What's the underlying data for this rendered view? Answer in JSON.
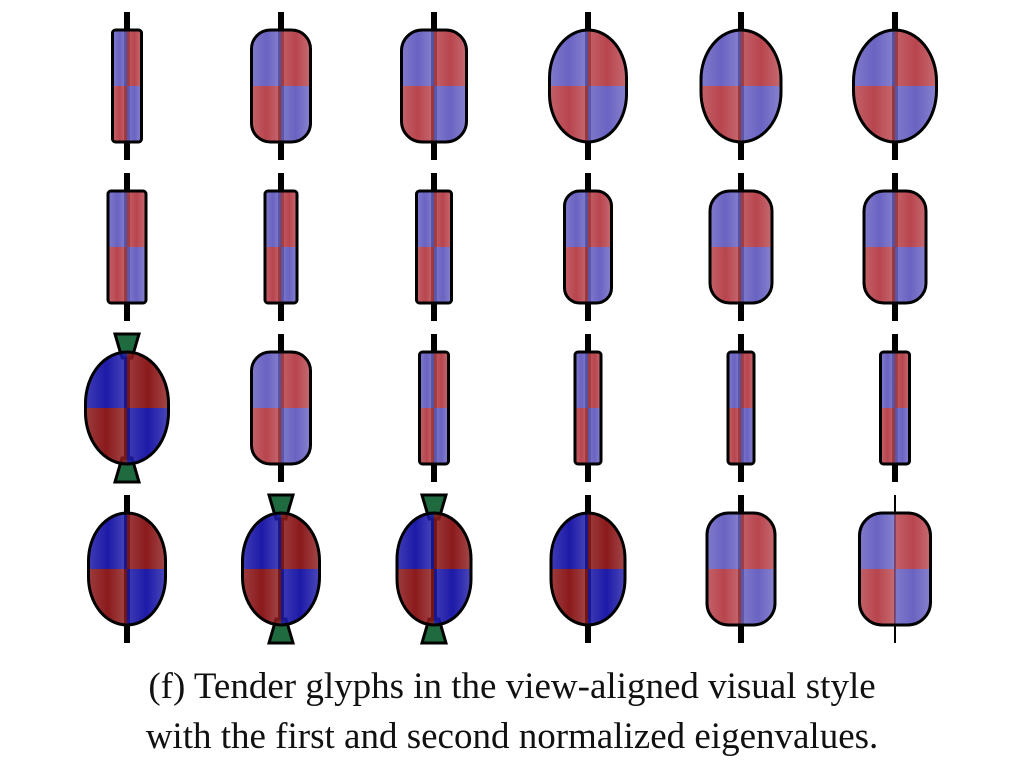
{
  "figure": {
    "colors": {
      "red": "#b8454e",
      "blue": "#6a63c2",
      "dark_red": "#8b1a1c",
      "dark_blue": "#1d1aa8",
      "green": "#1f6a3f",
      "outline": "#000000"
    },
    "glyphs": [
      [
        {
          "shape": "bar",
          "fill": 0.05,
          "tone": "light",
          "cap": "black"
        },
        {
          "shape": "capsule",
          "fill": 0.55,
          "tone": "light",
          "cap": "black"
        },
        {
          "shape": "capsule",
          "fill": 0.65,
          "tone": "light",
          "cap": "black"
        },
        {
          "shape": "ellipsoid",
          "fill": 0.85,
          "tone": "light",
          "cap": "black"
        },
        {
          "shape": "ellipsoid",
          "fill": 0.9,
          "tone": "light",
          "cap": "black"
        },
        {
          "shape": "ellipsoid",
          "fill": 0.95,
          "tone": "light",
          "cap": "black"
        }
      ],
      [
        {
          "shape": "bar",
          "fill": 0.2,
          "tone": "light",
          "cap": "black"
        },
        {
          "shape": "bar",
          "fill": 0.1,
          "tone": "light",
          "cap": "black"
        },
        {
          "shape": "bar",
          "fill": 0.15,
          "tone": "light",
          "cap": "black"
        },
        {
          "shape": "capsule",
          "fill": 0.35,
          "tone": "light",
          "cap": "black"
        },
        {
          "shape": "capsule",
          "fill": 0.6,
          "tone": "light",
          "cap": "black"
        },
        {
          "shape": "capsule",
          "fill": 0.6,
          "tone": "light",
          "cap": "black"
        }
      ],
      [
        {
          "shape": "ellipsoid",
          "fill": 0.95,
          "tone": "dark",
          "cap": "green"
        },
        {
          "shape": "capsule",
          "fill": 0.55,
          "tone": "light",
          "cap": "black"
        },
        {
          "shape": "bar",
          "fill": 0.05,
          "tone": "light",
          "cap": "black"
        },
        {
          "shape": "bar",
          "fill": 0.0,
          "tone": "light",
          "cap": "black"
        },
        {
          "shape": "bar",
          "fill": 0.0,
          "tone": "light",
          "cap": "black"
        },
        {
          "shape": "bar",
          "fill": 0.05,
          "tone": "light",
          "cap": "black"
        }
      ],
      [
        {
          "shape": "ellipsoid",
          "fill": 0.85,
          "tone": "dark",
          "cap": "black"
        },
        {
          "shape": "ellipsoid",
          "fill": 0.85,
          "tone": "dark",
          "cap": "green"
        },
        {
          "shape": "ellipsoid",
          "fill": 0.8,
          "tone": "dark",
          "cap": "green"
        },
        {
          "shape": "ellipsoid",
          "fill": 0.8,
          "tone": "dark",
          "cap": "black"
        },
        {
          "shape": "capsule",
          "fill": 0.7,
          "tone": "light",
          "cap": "black"
        },
        {
          "shape": "capsule",
          "fill": 0.75,
          "tone": "light",
          "cap": "thin"
        }
      ]
    ]
  },
  "caption": {
    "line1": "(f) Tender glyphs in the view-aligned visual style",
    "line2": "with the first and second normalized eigenvalues."
  }
}
